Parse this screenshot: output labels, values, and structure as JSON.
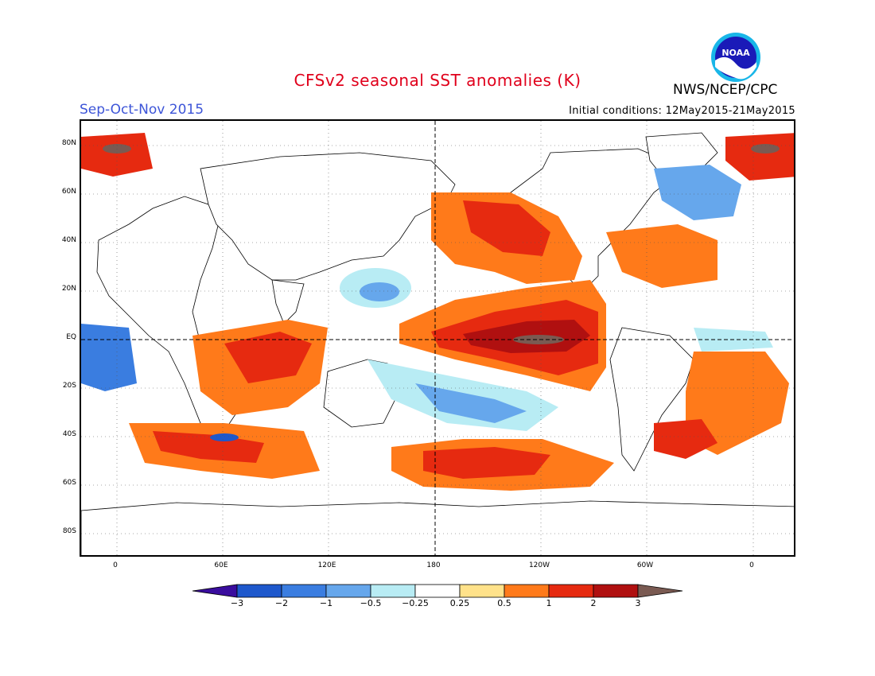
{
  "header": {
    "title": "CFSv2 seasonal SST anomalies (K)",
    "period": "Sep-Oct-Nov 2015",
    "initial_conditions": "Initial conditions: 12May2015-21May2015",
    "agency": "NWS/NCEP/CPC",
    "logo_text": "NOAA"
  },
  "map": {
    "lat_labels": [
      "80N",
      "60N",
      "40N",
      "20N",
      "EQ",
      "20S",
      "40S",
      "60S",
      "80S"
    ],
    "lon_labels": [
      "0",
      "60E",
      "120E",
      "180",
      "120W",
      "60W",
      "0"
    ]
  },
  "colorbar": {
    "labels": [
      "-3",
      "-2",
      "-1",
      "-0.5",
      "-0.25",
      "0.25",
      "0.5",
      "1",
      "2",
      "3"
    ],
    "colors": [
      "#3a0d9e",
      "#1e58cc",
      "#3a7de0",
      "#66a7ec",
      "#b8ecf4",
      "#ffffff",
      "#ffe28a",
      "#ff7a1a",
      "#e62a10",
      "#b01010",
      "#7a5a52"
    ]
  }
}
